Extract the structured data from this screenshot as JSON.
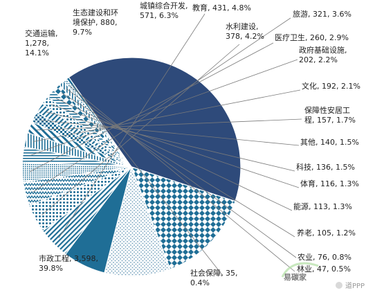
{
  "chart_data": {
    "type": "pie",
    "title": "",
    "slices": [
      {
        "label": "市政工程",
        "value": 3598,
        "pct": "39.8%",
        "color": "#2e4a7a",
        "pattern": "solid"
      },
      {
        "label": "交通运输",
        "value": 1278,
        "pct": "14.1%",
        "color": "#1f6e96",
        "pattern": "diamond"
      },
      {
        "label": "生态建设和环境保护",
        "value": 880,
        "pct": "9.7%",
        "color": "#7aa6c2",
        "pattern": "sparse"
      },
      {
        "label": "城镇综合开发",
        "value": 571,
        "pct": "6.3%",
        "color": "#1f6e96",
        "pattern": "solid"
      },
      {
        "label": "教育",
        "value": 431,
        "pct": "4.8%",
        "color": "#1f6e96",
        "pattern": "diag"
      },
      {
        "label": "水利建设",
        "value": 378,
        "pct": "4.2%",
        "color": "#1f6e96",
        "pattern": "dots"
      },
      {
        "label": "旅游",
        "value": 321,
        "pct": "3.6%",
        "color": "#1f6e96",
        "pattern": "zigzag"
      },
      {
        "label": "医疗卫生",
        "value": 260,
        "pct": "2.9%",
        "color": "#1f6e96",
        "pattern": "dense"
      },
      {
        "label": "政府基础设施",
        "value": 202,
        "pct": "2.2%",
        "color": "#1f6e96",
        "pattern": "hlines"
      },
      {
        "label": "文化",
        "value": 192,
        "pct": "2.1%",
        "color": "#1f6e96",
        "pattern": "vlines"
      },
      {
        "label": "保障性安居工程",
        "value": 157,
        "pct": "1.7%",
        "color": "#1f6e96",
        "pattern": "wide"
      },
      {
        "label": "其他",
        "value": 140,
        "pct": "1.5%",
        "color": "#1f6e96",
        "pattern": "check"
      },
      {
        "label": "科技",
        "value": 136,
        "pct": "1.5%",
        "color": "#1f6e96",
        "pattern": "diag"
      },
      {
        "label": "体育",
        "value": 116,
        "pct": "1.3%",
        "color": "#1f6e96",
        "pattern": "dots"
      },
      {
        "label": "能源",
        "value": 113,
        "pct": "1.3%",
        "color": "#1f6e96",
        "pattern": "hlines"
      },
      {
        "label": "养老",
        "value": 105,
        "pct": "1.2%",
        "color": "#1f6e96",
        "pattern": "diamond"
      },
      {
        "label": "农业",
        "value": 76,
        "pct": "0.8%",
        "color": "#1f6e96",
        "pattern": "vlines"
      },
      {
        "label": "林业",
        "value": 47,
        "pct": "0.5%",
        "color": "#1f6e96",
        "pattern": "dense"
      },
      {
        "label": "社会保障",
        "value": 35,
        "pct": "0.4%",
        "color": "#1f6e96",
        "pattern": "solid"
      }
    ],
    "labels": [
      {
        "lines": [
          "市政工程, 3,598,",
          "39.8%"
        ]
      },
      {
        "lines": [
          "交通运输,",
          "1,278,",
          "14.1%"
        ]
      },
      {
        "lines": [
          "生态建设和环",
          "境保护, 880,",
          "9.7%"
        ]
      },
      {
        "lines": [
          "城镇综合开发,",
          "571, 6.3%"
        ]
      },
      {
        "lines": [
          "教育, 431, 4.8%"
        ]
      },
      {
        "lines": [
          "水利建设,",
          "378, 4.2%"
        ]
      },
      {
        "lines": [
          "旅游, 321, 3.6%"
        ]
      },
      {
        "lines": [
          "医疗卫生, 260, 2.9%"
        ]
      },
      {
        "lines": [
          "政府基础设施,",
          "202, 2.2%"
        ]
      },
      {
        "lines": [
          "文化, 192, 2.1%"
        ]
      },
      {
        "lines": [
          "保障性安居工",
          "程, 157, 1.7%"
        ]
      },
      {
        "lines": [
          "其他, 140, 1.5%"
        ]
      },
      {
        "lines": [
          "科技, 136, 1.5%"
        ]
      },
      {
        "lines": [
          "体育, 116, 1.3%"
        ]
      },
      {
        "lines": [
          "能源, 113, 1.3%"
        ]
      },
      {
        "lines": [
          "养老, 105, 1.2%"
        ]
      },
      {
        "lines": [
          "农业, 76, 0.8%"
        ]
      },
      {
        "lines": [
          "林业, 47, 0.5%"
        ]
      },
      {
        "lines": [
          "社会保障, 35,",
          "0.4%"
        ]
      }
    ],
    "legend": "none"
  },
  "watermark": {
    "logo_text": "易碳家",
    "caption": "道PPP"
  }
}
